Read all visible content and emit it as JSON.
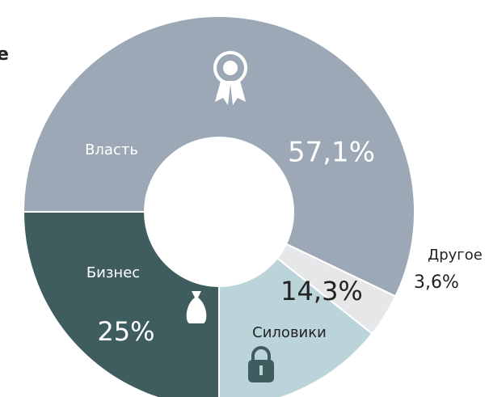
{
  "chart_data": {
    "type": "pie",
    "title": "е",
    "categories": [
      "Власть",
      "Другое",
      "Силовики",
      "Бизнес"
    ],
    "values": [
      57.1,
      3.6,
      14.3,
      25
    ],
    "value_labels": [
      "57,1%",
      "3,6%",
      "14,3%",
      "25%"
    ],
    "colors": [
      "#9ca8b6",
      "#e6e7e9",
      "#bad4d9",
      "#3f5d5f"
    ]
  }
}
